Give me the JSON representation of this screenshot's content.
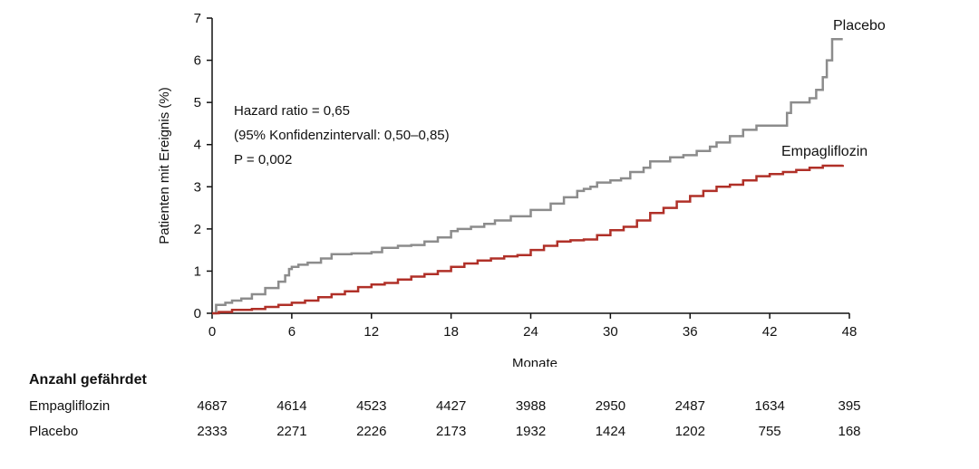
{
  "chart_data": {
    "type": "line",
    "step": true,
    "xlabel": "Monate",
    "ylabel": "Patienten mit Ereignis (%)",
    "xlim": [
      0,
      48
    ],
    "ylim": [
      0,
      7
    ],
    "x_ticks": [
      0,
      6,
      12,
      18,
      24,
      30,
      36,
      42,
      48
    ],
    "y_ticks": [
      0,
      1,
      2,
      3,
      4,
      5,
      6,
      7
    ],
    "grid": false,
    "annotations": [
      "Hazard ratio = 0,65",
      "(95% Konfidenzintervall: 0,50–0,85)",
      "P = 0,002"
    ],
    "series": [
      {
        "name": "Placebo",
        "color": "#8c8c8c",
        "points": [
          [
            0,
            0
          ],
          [
            0.3,
            0.2
          ],
          [
            1,
            0.25
          ],
          [
            1.5,
            0.3
          ],
          [
            2.2,
            0.35
          ],
          [
            3,
            0.45
          ],
          [
            4,
            0.6
          ],
          [
            5,
            0.75
          ],
          [
            5.5,
            0.9
          ],
          [
            5.8,
            1.05
          ],
          [
            6,
            1.1
          ],
          [
            6.5,
            1.15
          ],
          [
            7.2,
            1.2
          ],
          [
            8.2,
            1.3
          ],
          [
            9,
            1.4
          ],
          [
            10.5,
            1.42
          ],
          [
            12,
            1.45
          ],
          [
            12.8,
            1.55
          ],
          [
            14,
            1.6
          ],
          [
            15,
            1.62
          ],
          [
            16,
            1.7
          ],
          [
            17,
            1.8
          ],
          [
            18,
            1.95
          ],
          [
            18.5,
            2.0
          ],
          [
            19.5,
            2.05
          ],
          [
            20.5,
            2.12
          ],
          [
            21.3,
            2.2
          ],
          [
            22.5,
            2.3
          ],
          [
            24,
            2.45
          ],
          [
            25.5,
            2.6
          ],
          [
            26.5,
            2.75
          ],
          [
            27.5,
            2.9
          ],
          [
            28,
            2.95
          ],
          [
            28.5,
            3.0
          ],
          [
            29,
            3.1
          ],
          [
            30,
            3.15
          ],
          [
            30.8,
            3.2
          ],
          [
            31.5,
            3.35
          ],
          [
            32.5,
            3.45
          ],
          [
            33,
            3.6
          ],
          [
            34.5,
            3.7
          ],
          [
            35.5,
            3.75
          ],
          [
            36.5,
            3.85
          ],
          [
            37.5,
            3.95
          ],
          [
            38,
            4.05
          ],
          [
            39,
            4.2
          ],
          [
            40,
            4.35
          ],
          [
            41,
            4.45
          ],
          [
            42,
            4.45
          ],
          [
            43.3,
            4.75
          ],
          [
            43.6,
            5.0
          ],
          [
            45,
            5.1
          ],
          [
            45.5,
            5.3
          ],
          [
            46,
            5.6
          ],
          [
            46.3,
            6.0
          ],
          [
            46.7,
            6.5
          ],
          [
            47.5,
            6.5
          ]
        ]
      },
      {
        "name": "Empagliflozin",
        "color": "#b03028",
        "points": [
          [
            0,
            0
          ],
          [
            0.5,
            0.03
          ],
          [
            1.5,
            0.08
          ],
          [
            3,
            0.1
          ],
          [
            4,
            0.15
          ],
          [
            5,
            0.2
          ],
          [
            6,
            0.25
          ],
          [
            7,
            0.3
          ],
          [
            8,
            0.38
          ],
          [
            9,
            0.45
          ],
          [
            10,
            0.52
          ],
          [
            11,
            0.62
          ],
          [
            12,
            0.68
          ],
          [
            13,
            0.72
          ],
          [
            14,
            0.8
          ],
          [
            15,
            0.87
          ],
          [
            16,
            0.93
          ],
          [
            17,
            1.0
          ],
          [
            18,
            1.1
          ],
          [
            19,
            1.18
          ],
          [
            20,
            1.25
          ],
          [
            21,
            1.3
          ],
          [
            22,
            1.35
          ],
          [
            23,
            1.38
          ],
          [
            24,
            1.5
          ],
          [
            25,
            1.6
          ],
          [
            26,
            1.7
          ],
          [
            27,
            1.73
          ],
          [
            28,
            1.75
          ],
          [
            29,
            1.85
          ],
          [
            30,
            1.97
          ],
          [
            31,
            2.05
          ],
          [
            32,
            2.2
          ],
          [
            33,
            2.38
          ],
          [
            34,
            2.5
          ],
          [
            35,
            2.65
          ],
          [
            36,
            2.78
          ],
          [
            37,
            2.9
          ],
          [
            38,
            3.0
          ],
          [
            39,
            3.05
          ],
          [
            40,
            3.15
          ],
          [
            41,
            3.25
          ],
          [
            42,
            3.3
          ],
          [
            43,
            3.35
          ],
          [
            44,
            3.4
          ],
          [
            45,
            3.45
          ],
          [
            46,
            3.5
          ],
          [
            47.5,
            3.52
          ]
        ]
      }
    ],
    "risk_table": {
      "title": "Anzahl gefährdet",
      "columns": [
        0,
        6,
        12,
        18,
        24,
        30,
        36,
        42,
        48
      ],
      "rows": [
        {
          "label": "Empagliflozin",
          "values": [
            "4687",
            "4614",
            "4523",
            "4427",
            "3988",
            "2950",
            "2487",
            "1634",
            "395"
          ]
        },
        {
          "label": "Placebo",
          "values": [
            "2333",
            "2271",
            "2226",
            "2173",
            "1932",
            "1424",
            "1202",
            "755",
            "168"
          ]
        }
      ]
    }
  }
}
